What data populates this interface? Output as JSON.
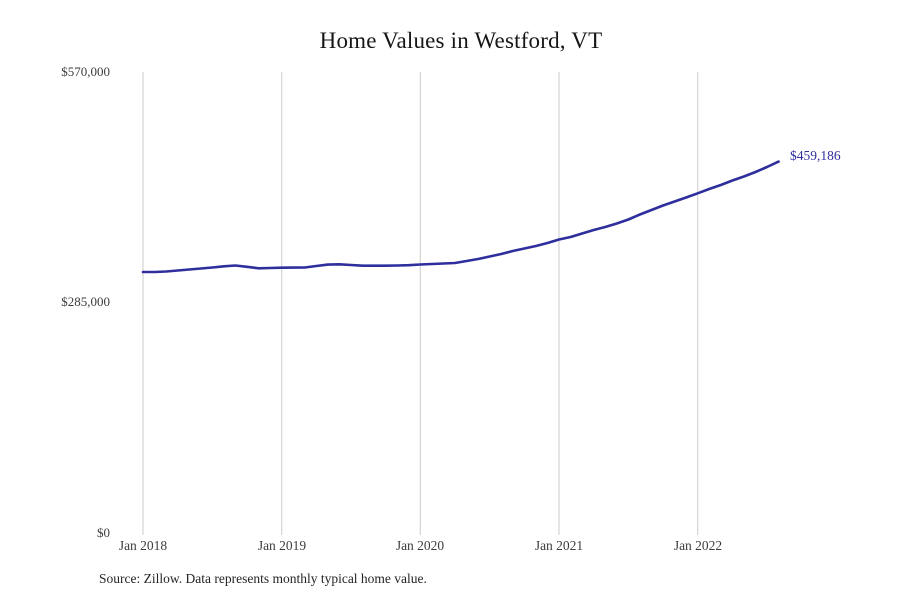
{
  "title": "Home Values in Westford, VT",
  "source_note": "Source: Zillow. Data represents monthly typical home value.",
  "latest_value_label": "$459,186",
  "colors": {
    "line": "#2e2e9d",
    "grid": "#cbcbcb",
    "tick_text": "#3d3d3d",
    "title_text": "#161616",
    "annotation": "#2e2e9d"
  },
  "chart_data": {
    "type": "line",
    "title": "Home Values in Westford, VT",
    "xlabel": "",
    "ylabel": "",
    "ylim": [
      0,
      570000
    ],
    "grid": "vertical-only",
    "legend": "none",
    "x": [
      "Jan 2018",
      "Feb 2018",
      "Mar 2018",
      "Apr 2018",
      "May 2018",
      "Jun 2018",
      "Jul 2018",
      "Aug 2018",
      "Sep 2018",
      "Oct 2018",
      "Nov 2018",
      "Dec 2018",
      "Jan 2019",
      "Feb 2019",
      "Mar 2019",
      "Apr 2019",
      "May 2019",
      "Jun 2019",
      "Jul 2019",
      "Aug 2019",
      "Sep 2019",
      "Oct 2019",
      "Nov 2019",
      "Dec 2019",
      "Jan 2020",
      "Feb 2020",
      "Mar 2020",
      "Apr 2020",
      "May 2020",
      "Jun 2020",
      "Jul 2020",
      "Aug 2020",
      "Sep 2020",
      "Oct 2020",
      "Nov 2020",
      "Dec 2020",
      "Jan 2021",
      "Feb 2021",
      "Mar 2021",
      "Apr 2021",
      "May 2021",
      "Jun 2021",
      "Jul 2021",
      "Aug 2021",
      "Sep 2021",
      "Oct 2021",
      "Nov 2021",
      "Dec 2021",
      "Jan 2022",
      "Feb 2022",
      "Mar 2022",
      "Apr 2022",
      "May 2022",
      "Jun 2022",
      "Jul 2022",
      "Aug 2022"
    ],
    "values": [
      322700,
      322700,
      323300,
      324600,
      325800,
      327000,
      328300,
      329700,
      330700,
      329100,
      327300,
      327600,
      328000,
      328100,
      328300,
      330100,
      331900,
      332200,
      331400,
      330500,
      330500,
      330500,
      330700,
      331100,
      332000,
      332600,
      333200,
      333800,
      336300,
      338800,
      341900,
      345000,
      348700,
      351800,
      354800,
      358600,
      362900,
      366000,
      370300,
      374600,
      378300,
      382700,
      387600,
      393800,
      399400,
      404900,
      409900,
      414800,
      420000,
      425300,
      430300,
      435800,
      440800,
      446300,
      452500,
      459186
    ],
    "yticks": [
      {
        "value": 0,
        "label": "$0"
      },
      {
        "value": 285000,
        "label": "$285,000"
      },
      {
        "value": 570000,
        "label": "$570,000"
      }
    ],
    "xticks": [
      {
        "month_index": 0,
        "label": "Jan 2018"
      },
      {
        "month_index": 12,
        "label": "Jan 2019"
      },
      {
        "month_index": 24,
        "label": "Jan 2020"
      },
      {
        "month_index": 36,
        "label": "Jan 2021"
      },
      {
        "month_index": 48,
        "label": "Jan 2022"
      }
    ],
    "last_point_label": "$459,186"
  }
}
